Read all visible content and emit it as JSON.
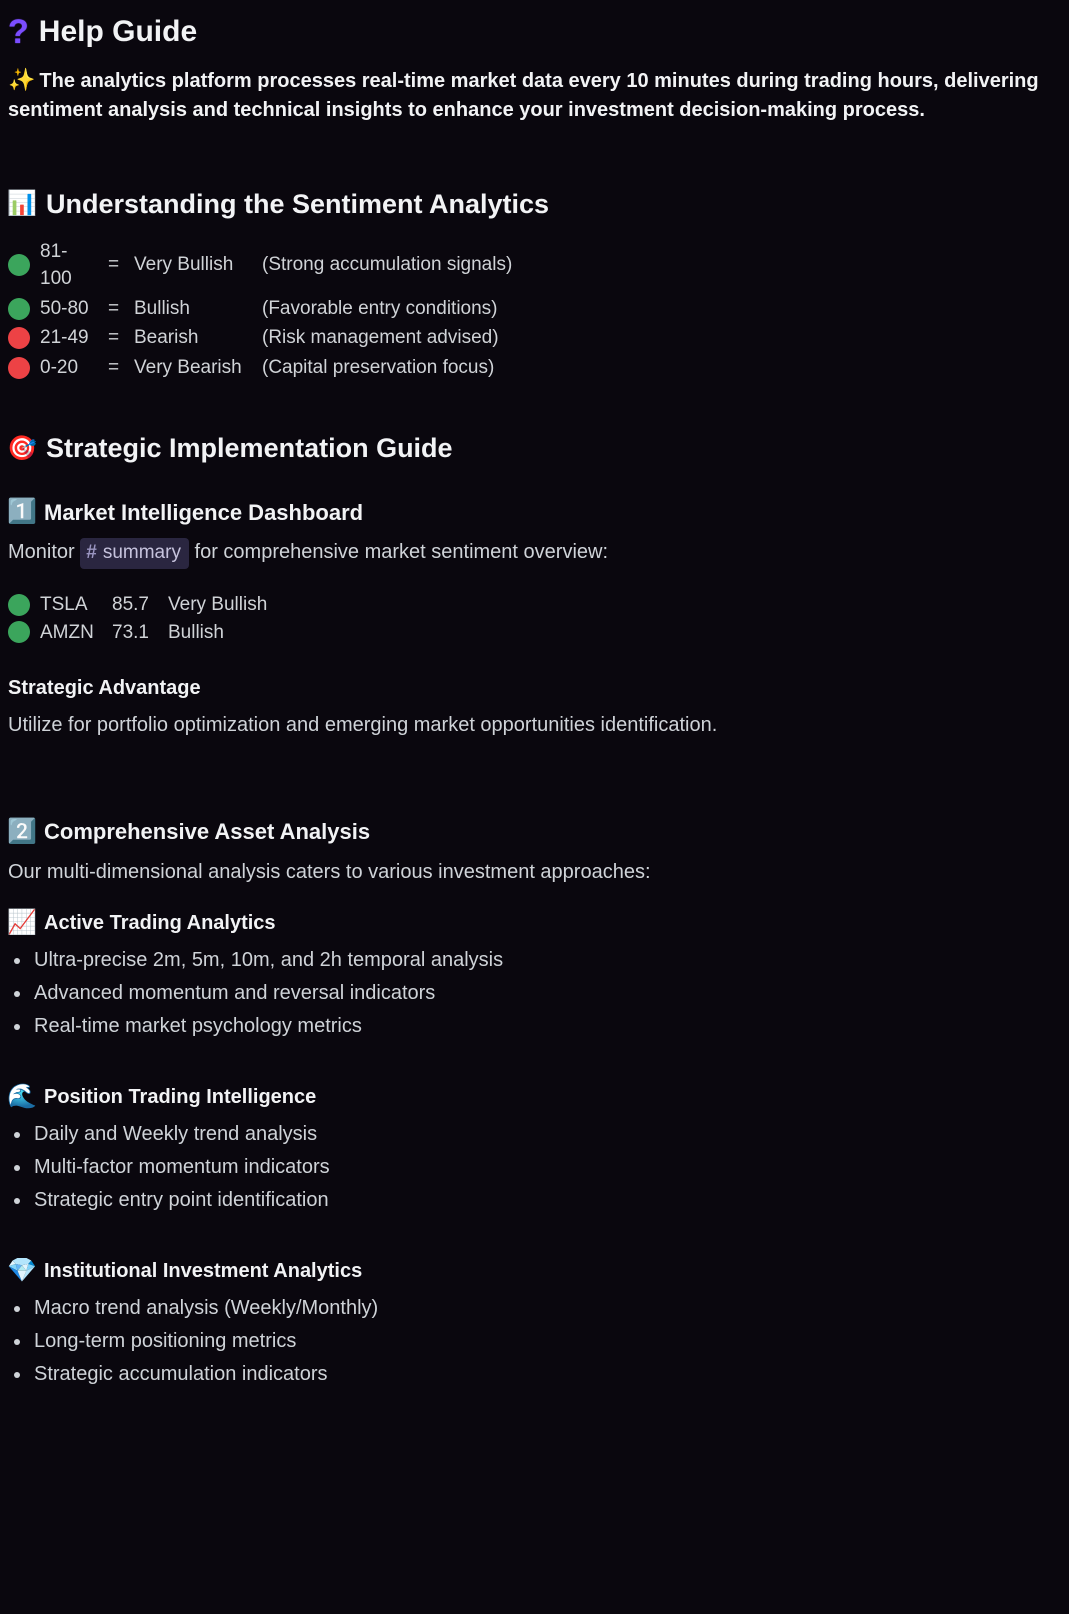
{
  "colors": {
    "bg": "#0a070e",
    "text": "#dbdee1",
    "heading": "#f2f3f5",
    "accent_purple": "#7b4dff",
    "chip_bg": "#2a2640",
    "chip_text": "#c6c3dd",
    "dot_green": "#3ba55c",
    "dot_red": "#ed4245"
  },
  "header": {
    "question_glyph": "?",
    "title": "Help Guide",
    "sparkle": "✨",
    "intro": "The analytics platform processes real-time market data every 10 minutes during trading hours, delivering sentiment analysis and technical insights to enhance your investment decision-making process."
  },
  "sentiment": {
    "icon": "📊",
    "title": "Understanding the Sentiment Analytics",
    "rows": [
      {
        "color": "#3ba55c",
        "range": "81-100",
        "label": "Very Bullish",
        "desc": "(Strong accumulation signals)"
      },
      {
        "color": "#3ba55c",
        "range": "50-80",
        "label": "Bullish",
        "desc": "(Favorable entry conditions)"
      },
      {
        "color": "#ed4245",
        "range": "21-49",
        "label": "Bearish",
        "desc": "(Risk management advised)"
      },
      {
        "color": "#ed4245",
        "range": "0-20",
        "label": "Very Bearish",
        "desc": "(Capital preservation focus)"
      }
    ]
  },
  "strategy": {
    "icon": "🎯",
    "title": "Strategic Implementation Guide",
    "step1": {
      "icon": "1️⃣",
      "title": "Market Intelligence Dashboard",
      "lead_pre": "Monitor ",
      "channel": "summary",
      "lead_post": " for comprehensive market sentiment overview:",
      "stocks": [
        {
          "color": "#3ba55c",
          "ticker": "TSLA",
          "score": "85.7",
          "label": "Very Bullish"
        },
        {
          "color": "#3ba55c",
          "ticker": "AMZN",
          "score": "73.1",
          "label": "Bullish"
        }
      ],
      "adv_title": "Strategic Advantage",
      "adv_body": "Utilize for portfolio optimization and emerging market opportunities identification."
    },
    "step2": {
      "icon": "2️⃣",
      "title": "Comprehensive Asset Analysis",
      "lead": "Our multi-dimensional analysis caters to various investment approaches:",
      "groups": [
        {
          "icon": "📈",
          "title": "Active Trading Analytics",
          "items": [
            "Ultra-precise 2m, 5m, 10m, and 2h temporal analysis",
            "Advanced momentum and reversal indicators",
            "Real-time market psychology metrics"
          ]
        },
        {
          "icon": "🌊",
          "title": "Position Trading Intelligence",
          "items": [
            "Daily and Weekly trend analysis",
            "Multi-factor momentum indicators",
            "Strategic entry point identification"
          ]
        },
        {
          "icon": "💎",
          "title": "Institutional Investment Analytics",
          "items": [
            "Macro trend analysis (Weekly/Monthly)",
            "Long-term positioning metrics",
            "Strategic accumulation indicators"
          ]
        }
      ]
    }
  }
}
